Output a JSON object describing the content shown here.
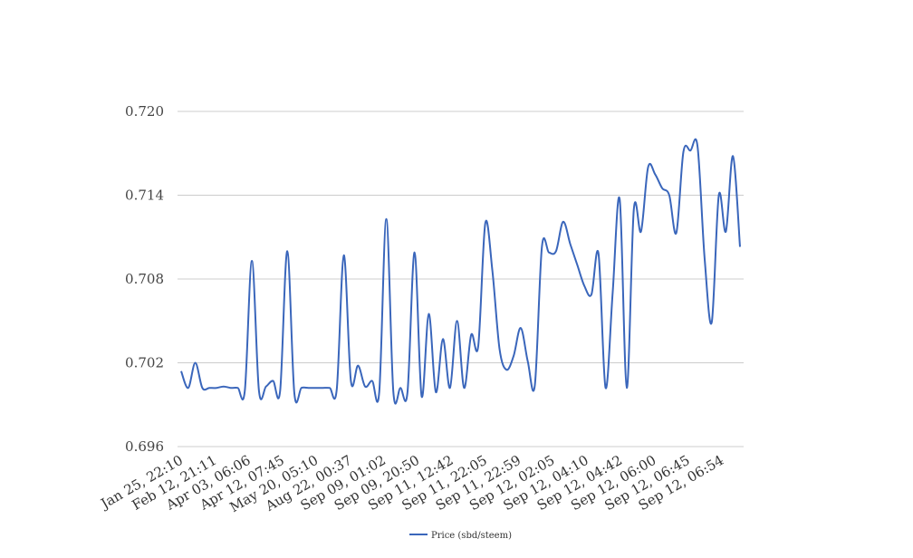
{
  "chart_data": {
    "type": "line",
    "title": "",
    "xlabel": "",
    "ylabel": "",
    "ylim": [
      0.696,
      0.72
    ],
    "yticks": [
      "0.720",
      "0.714",
      "0.708",
      "0.702",
      "0.696"
    ],
    "ytick_values": [
      0.72,
      0.714,
      0.708,
      0.702,
      0.696
    ],
    "xtick_labels": [
      "Jan 25, 22:10",
      "Feb 12, 21:11",
      "Apr 03, 06:06",
      "Apr 12, 07:45",
      "May 20, 05:10",
      "Aug 22, 00:37",
      "Sep 09, 01:02",
      "Sep 09, 20:50",
      "Sep 11, 12:42",
      "Sep 11, 22:05",
      "Sep 11, 22:59",
      "Sep 12, 02:05",
      "Sep 12, 04:10",
      "Sep 12, 04:42",
      "Sep 12, 06:00",
      "Sep 12, 06:45",
      "Sep 12, 06:54"
    ],
    "grid": true,
    "legend_position": "bottom",
    "series": [
      {
        "name": "Price (sbd/steem)",
        "color": "#3a66bb",
        "values": [
          0.7014,
          0.7002,
          0.702,
          0.7002,
          0.7002,
          0.7002,
          0.7003,
          0.7002,
          0.7002,
          0.7,
          0.7093,
          0.7,
          0.7003,
          0.7007,
          0.7,
          0.71,
          0.6998,
          0.7002,
          0.7002,
          0.7002,
          0.7002,
          0.7002,
          0.7001,
          0.7097,
          0.7007,
          0.7018,
          0.7003,
          0.7007,
          0.6999,
          0.7123,
          0.6999,
          0.7002,
          0.6999,
          0.7099,
          0.6996,
          0.7055,
          0.6999,
          0.7037,
          0.7002,
          0.705,
          0.7002,
          0.704,
          0.7032,
          0.712,
          0.7086,
          0.703,
          0.7015,
          0.7025,
          0.7045,
          0.7021,
          0.7004,
          0.7103,
          0.7099,
          0.71,
          0.7121,
          0.7105,
          0.709,
          0.7075,
          0.7069,
          0.7098,
          0.7002,
          0.707,
          0.7137,
          0.7002,
          0.713,
          0.7114,
          0.716,
          0.7155,
          0.7145,
          0.714,
          0.7113,
          0.7171,
          0.7172,
          0.7175,
          0.7095,
          0.7049,
          0.714,
          0.7114,
          0.7168,
          0.7103
        ]
      }
    ]
  }
}
